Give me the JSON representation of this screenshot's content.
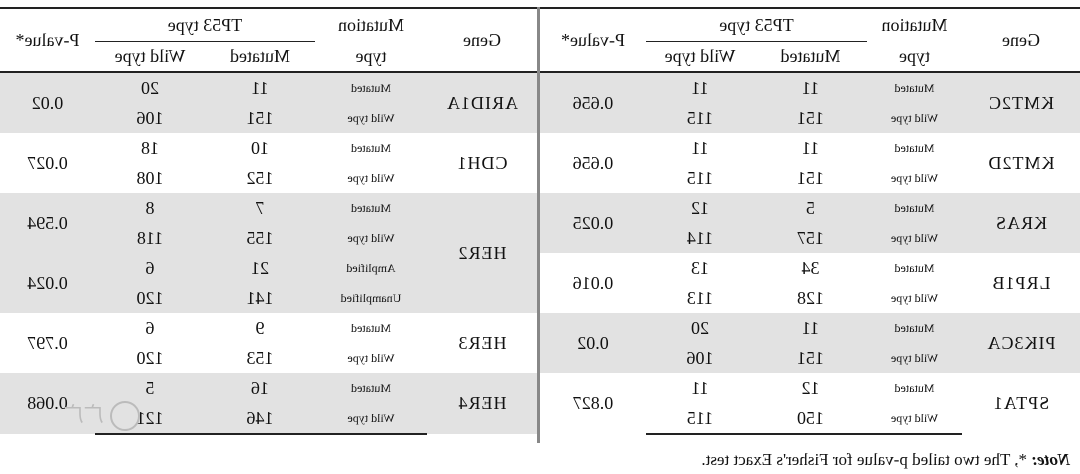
{
  "headers": {
    "gene": "Gene",
    "mutation_type_line1": "Mutation",
    "mutation_type_line2": "type",
    "tp53_type": "TP53 type",
    "mutated": "Mutated",
    "wild_type": "Wild type",
    "p_value": "P-value*"
  },
  "right_table": [
    {
      "gene": "ARID1A",
      "p": "0.02",
      "shade": true,
      "rows": [
        {
          "type": "Mutated",
          "mut": "11",
          "wild": "20"
        },
        {
          "type": "Wild type",
          "mut": "151",
          "wild": "106"
        }
      ]
    },
    {
      "gene": "CDH1",
      "p": "0.027",
      "shade": false,
      "rows": [
        {
          "type": "Mutated",
          "mut": "10",
          "wild": "18"
        },
        {
          "type": "Wild type",
          "mut": "152",
          "wild": "108"
        }
      ]
    },
    {
      "gene": "HER2",
      "p": "",
      "shade": true,
      "span": 4,
      "subgroups": [
        {
          "p": "0.594",
          "rows": [
            {
              "type": "Mutated",
              "mut": "7",
              "wild": "8"
            },
            {
              "type": "Wild type",
              "mut": "155",
              "wild": "118"
            }
          ]
        },
        {
          "p": "0.024",
          "rows": [
            {
              "type": "Amplified",
              "mut": "21",
              "wild": "6"
            },
            {
              "type": "Unamplified",
              "mut": "141",
              "wild": "120"
            }
          ]
        }
      ]
    },
    {
      "gene": "HER3",
      "p": "0.797",
      "shade": false,
      "rows": [
        {
          "type": "Mutated",
          "mut": "9",
          "wild": "6"
        },
        {
          "type": "Wild type",
          "mut": "153",
          "wild": "120"
        }
      ]
    },
    {
      "gene": "HER4",
      "p": "0.068",
      "shade": true,
      "rows": [
        {
          "type": "Mutated",
          "mut": "16",
          "wild": "5"
        },
        {
          "type": "Wild type",
          "mut": "146",
          "wild": "121"
        }
      ]
    }
  ],
  "left_table": [
    {
      "gene": "KMT2C",
      "p": "0.656",
      "shade": true,
      "rows": [
        {
          "type": "Mutated",
          "mut": "11",
          "wild": "11"
        },
        {
          "type": "Wild type",
          "mut": "151",
          "wild": "115"
        }
      ]
    },
    {
      "gene": "KMT2D",
      "p": "0.656",
      "shade": false,
      "rows": [
        {
          "type": "Mutated",
          "mut": "11",
          "wild": "11"
        },
        {
          "type": "Wild type",
          "mut": "151",
          "wild": "115"
        }
      ]
    },
    {
      "gene": "KRAS",
      "p": "0.025",
      "shade": true,
      "rows": [
        {
          "type": "Mutated",
          "mut": "5",
          "wild": "12"
        },
        {
          "type": "Wild type",
          "mut": "157",
          "wild": "114"
        }
      ]
    },
    {
      "gene": "LRP1B",
      "p": "0.016",
      "shade": false,
      "rows": [
        {
          "type": "Mutated",
          "mut": "34",
          "wild": "13"
        },
        {
          "type": "Wild type",
          "mut": "128",
          "wild": "113"
        }
      ]
    },
    {
      "gene": "PIK3CA",
      "p": "0.02",
      "shade": true,
      "rows": [
        {
          "type": "Mutated",
          "mut": "11",
          "wild": "20"
        },
        {
          "type": "Wild type",
          "mut": "151",
          "wild": "106"
        }
      ]
    },
    {
      "gene": "SPTA1",
      "p": "0.827",
      "shade": false,
      "rows": [
        {
          "type": "Mutated",
          "mut": "12",
          "wild": "11"
        },
        {
          "type": "Wild type",
          "mut": "150",
          "wild": "115"
        }
      ]
    }
  ],
  "note": {
    "lead": "Note:",
    "text": " *, The two tailed p-value for Fisher's Exact test."
  },
  "watermark": "广广"
}
